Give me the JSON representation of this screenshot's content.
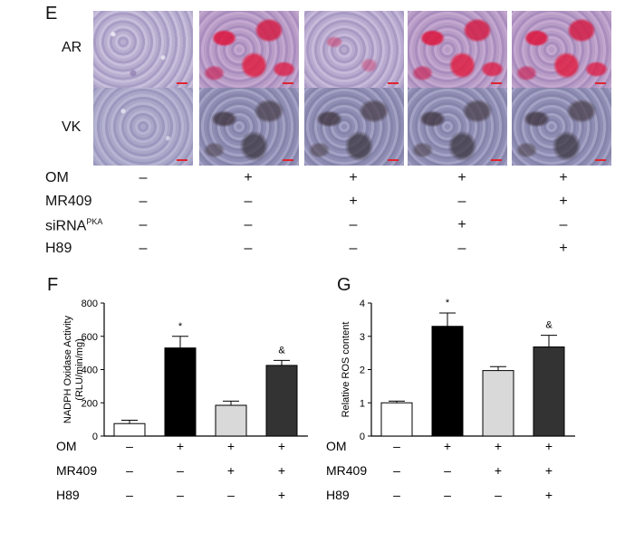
{
  "panel_e": {
    "letter": "E",
    "rows": [
      "AR",
      "VK"
    ],
    "conditions": [
      {
        "label": "OM",
        "signs": [
          "–",
          "+",
          "+",
          "+",
          "+"
        ]
      },
      {
        "label": "MR409",
        "signs": [
          "–",
          "–",
          "+",
          "–",
          "+"
        ]
      },
      {
        "label": "siRNA",
        "superscript": "PKA",
        "signs": [
          "–",
          "–",
          "–",
          "+",
          "–"
        ]
      },
      {
        "label": "H89",
        "signs": [
          "–",
          "–",
          "–",
          "–",
          "+"
        ]
      }
    ],
    "tile_types": {
      "AR": [
        "ar-neg",
        "ar-pos",
        "ar-mid",
        "ar-pos",
        "ar-pos"
      ],
      "VK": [
        "vk-neg",
        "vk-pos",
        "vk-pos",
        "vk-pos",
        "vk-pos"
      ]
    }
  },
  "chart_data": [
    {
      "panel": "F",
      "type": "bar",
      "ylabel": [
        "NADPH Oxidase Activity",
        "(RLU/min/mg)"
      ],
      "ylim": [
        0,
        800
      ],
      "yticks": [
        0,
        200,
        400,
        600,
        800
      ],
      "values": [
        75,
        530,
        185,
        425
      ],
      "errors": [
        20,
        70,
        25,
        30
      ],
      "fills": [
        "#ffffff",
        "#000000",
        "#d9d9d9",
        "#333333"
      ],
      "annotations": [
        "",
        "*",
        "",
        "&"
      ],
      "conditions": [
        {
          "label": "OM",
          "signs": [
            "–",
            "+",
            "+",
            "+"
          ]
        },
        {
          "label": "MR409",
          "signs": [
            "–",
            "–",
            "+",
            "+"
          ]
        },
        {
          "label": "H89",
          "signs": [
            "–",
            "–",
            "–",
            "+"
          ]
        }
      ]
    },
    {
      "panel": "G",
      "type": "bar",
      "ylabel": [
        "Relative ROS content"
      ],
      "ylim": [
        0,
        4
      ],
      "yticks": [
        0,
        1,
        2,
        3,
        4
      ],
      "values": [
        1.0,
        3.3,
        1.97,
        2.68
      ],
      "errors": [
        0.05,
        0.4,
        0.12,
        0.35
      ],
      "fills": [
        "#ffffff",
        "#000000",
        "#d9d9d9",
        "#333333"
      ],
      "annotations": [
        "",
        "*",
        "",
        "&"
      ],
      "conditions": [
        {
          "label": "OM",
          "signs": [
            "–",
            "+",
            "+",
            "+"
          ]
        },
        {
          "label": "MR409",
          "signs": [
            "–",
            "–",
            "+",
            "+"
          ]
        },
        {
          "label": "H89",
          "signs": [
            "–",
            "–",
            "–",
            "+"
          ]
        }
      ]
    }
  ]
}
